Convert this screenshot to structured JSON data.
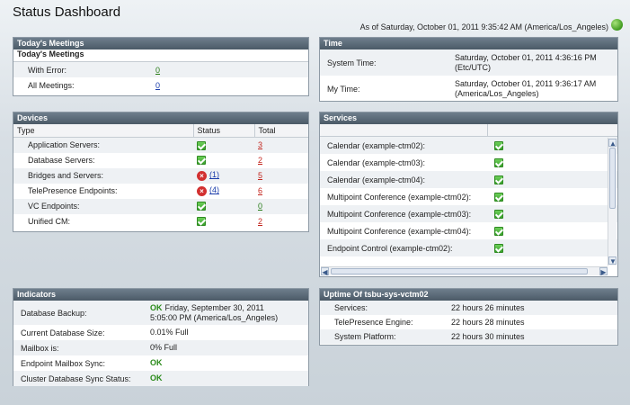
{
  "page": {
    "title": "Status Dashboard",
    "as_of": "As of Saturday, October 01, 2011 9:35:42 AM (America/Los_Angeles)"
  },
  "meetings": {
    "header": "Today's Meetings",
    "subheader": "Today's Meetings",
    "rows": [
      {
        "label": "With Error:",
        "value": "0"
      },
      {
        "label": "All Meetings:",
        "value": "0"
      }
    ]
  },
  "time": {
    "header": "Time",
    "rows": [
      {
        "label": "System Time:",
        "value1": "Saturday, October 01, 2011 4:36:16 PM",
        "value2": "(Etc/UTC)"
      },
      {
        "label": "My Time:",
        "value1": "Saturday, October 01, 2011 9:36:17 AM",
        "value2": "(America/Los_Angeles)"
      }
    ]
  },
  "devices": {
    "header": "Devices",
    "columns": [
      "Type",
      "Status",
      "Total"
    ],
    "rows": [
      {
        "type": "Application Servers:",
        "status": "ok",
        "status_count": "",
        "total": "3"
      },
      {
        "type": "Database Servers:",
        "status": "ok",
        "status_count": "",
        "total": "2"
      },
      {
        "type": "Bridges and Servers:",
        "status": "error",
        "status_count": "(1)",
        "total": "5"
      },
      {
        "type": "TelePresence Endpoints:",
        "status": "error",
        "status_count": "(4)",
        "total": "6"
      },
      {
        "type": "VC Endpoints:",
        "status": "ok",
        "status_count": "",
        "total": "0"
      },
      {
        "type": "Unified CM:",
        "status": "ok",
        "status_count": "",
        "total": "2"
      }
    ]
  },
  "services": {
    "header": "Services",
    "rows": [
      "Calendar (example-ctm02):",
      "Calendar (example-ctm03):",
      "Calendar (example-ctm04):",
      "Multipoint Conference (example-ctm02):",
      "Multipoint Conference (example-ctm03):",
      "Multipoint Conference (example-ctm04):",
      "Endpoint Control (example-ctm02):"
    ]
  },
  "indicators": {
    "header": "Indicators",
    "rows": [
      {
        "label": "Database Backup:",
        "ok": "OK",
        "value": "Friday, September 30, 2011",
        "value2": "5:05:00 PM (America/Los_Angeles)"
      },
      {
        "label": "Current Database Size:",
        "ok": "",
        "value": "0.01% Full",
        "value2": ""
      },
      {
        "label": "Mailbox is:",
        "ok": "",
        "value": "0% Full",
        "value2": ""
      },
      {
        "label": "Endpoint Mailbox Sync:",
        "ok": "OK",
        "value": "",
        "value2": ""
      },
      {
        "label": "Cluster Database Sync Status:",
        "ok": "OK",
        "value": "",
        "value2": ""
      }
    ]
  },
  "uptime": {
    "header": "Uptime Of tsbu-sys-vctm02",
    "rows": [
      {
        "label": "Services:",
        "value": "22 hours 26 minutes"
      },
      {
        "label": "TelePresence Engine:",
        "value": "22 hours 28 minutes"
      },
      {
        "label": "System Platform:",
        "value": "22 hours 30 minutes"
      }
    ]
  },
  "colors": {
    "header_bg": "#4b5a67",
    "ok_green": "#2a8a1a",
    "error_red": "#d23030",
    "link_blue": "#1a3caa"
  },
  "icons": {
    "refresh": "refresh-icon",
    "ok": "check-icon",
    "error": "error-icon"
  }
}
